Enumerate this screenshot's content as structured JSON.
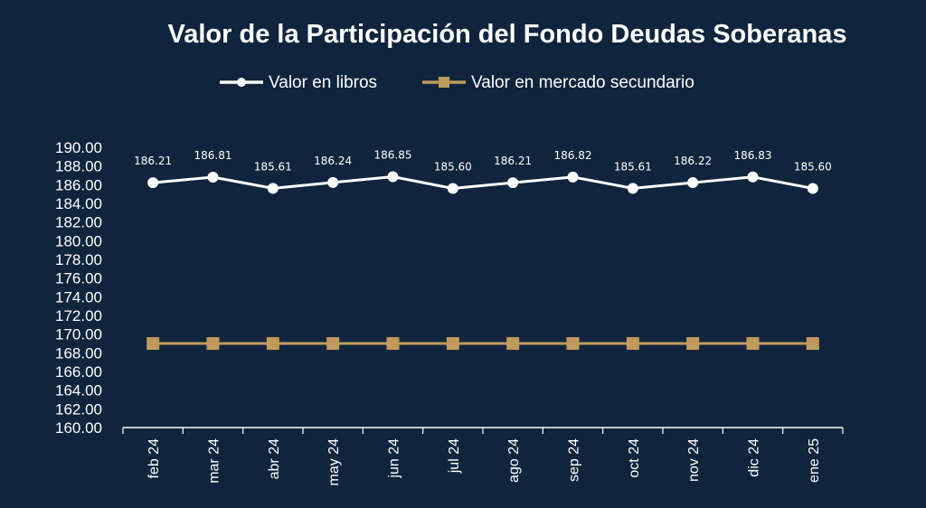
{
  "chart_data": {
    "type": "line",
    "title": "Valor de la Participación del Fondo Deudas Soberanas",
    "categories": [
      "feb 24",
      "mar 24",
      "abr 24",
      "may 24",
      "jun 24",
      "jul 24",
      "ago 24",
      "sep 24",
      "oct 24",
      "nov 24",
      "dic 24",
      "ene 25"
    ],
    "series": [
      {
        "name": "Valor en libros",
        "color": "#ffffff",
        "marker": "circle",
        "values": [
          186.21,
          186.81,
          185.61,
          186.24,
          186.85,
          185.6,
          186.21,
          186.82,
          185.61,
          186.22,
          186.83,
          185.6
        ],
        "labels": [
          "186.21",
          "186.81",
          "185.61",
          "186.24",
          "186.85",
          "185.60",
          "186.21",
          "186.82",
          "185.61",
          "186.22",
          "186.83",
          "185.60"
        ]
      },
      {
        "name": "Valor en mercado secundario",
        "color": "#c09a5b",
        "marker": "square",
        "values": [
          169.0,
          169.0,
          169.0,
          169.0,
          169.0,
          169.0,
          169.0,
          169.0,
          169.0,
          169.0,
          169.0,
          169.0
        ]
      }
    ],
    "ylim": [
      160,
      190
    ],
    "yticks": [
      "160.00",
      "162.00",
      "164.00",
      "166.00",
      "168.00",
      "170.00",
      "172.00",
      "174.00",
      "176.00",
      "178.00",
      "180.00",
      "182.00",
      "184.00",
      "186.00",
      "188.00",
      "190.00"
    ],
    "legend_position": "top-center",
    "grid": false,
    "background": "#10253d"
  }
}
